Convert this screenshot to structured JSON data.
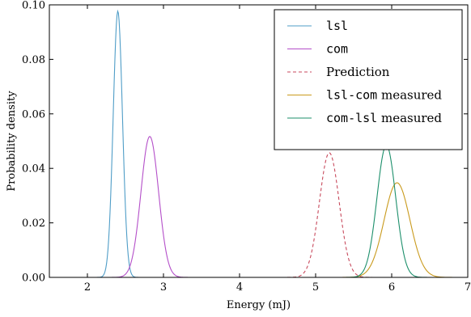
{
  "chart_data": {
    "type": "line",
    "xlabel": "Energy (mJ)",
    "ylabel": "Probability density",
    "xlim": [
      1.5,
      7.0
    ],
    "ylim": [
      0.0,
      0.1
    ],
    "x_ticks": [
      2,
      3,
      4,
      5,
      6,
      7
    ],
    "x_tick_labels": [
      "2",
      "3",
      "4",
      "5",
      "6",
      "7"
    ],
    "y_ticks": [
      0.0,
      0.02,
      0.04,
      0.06,
      0.08,
      0.1
    ],
    "y_tick_labels": [
      "0.00",
      "0.02",
      "0.04",
      "0.06",
      "0.08",
      "0.10"
    ],
    "grid": false,
    "legend_position": "top-right",
    "series": [
      {
        "name": "lsl",
        "style": "solid",
        "color": "#4f9dc7",
        "mean": 2.4,
        "std": 0.061,
        "peak": 0.0977,
        "mono": true
      },
      {
        "name": "com",
        "style": "solid",
        "color": "#b44fc9",
        "mean": 2.82,
        "std": 0.116,
        "peak": 0.0517,
        "mono": true
      },
      {
        "name": "Prediction",
        "style": "dashed",
        "color": "#c84a5d",
        "mean": 5.18,
        "std": 0.13,
        "peak": 0.0457,
        "mono": false
      },
      {
        "name": "lsl-com measured",
        "style": "solid",
        "color": "#c99a1c",
        "mean": 6.07,
        "std": 0.17,
        "peak": 0.0347,
        "mono": true,
        "suffix": " measured",
        "mono_part": "lsl-com"
      },
      {
        "name": "com-lsl measured",
        "style": "solid",
        "color": "#1c8f6b",
        "mean": 5.93,
        "std": 0.123,
        "peak": 0.0485,
        "mono": true,
        "suffix": " measured",
        "mono_part": "com-lsl"
      }
    ]
  }
}
